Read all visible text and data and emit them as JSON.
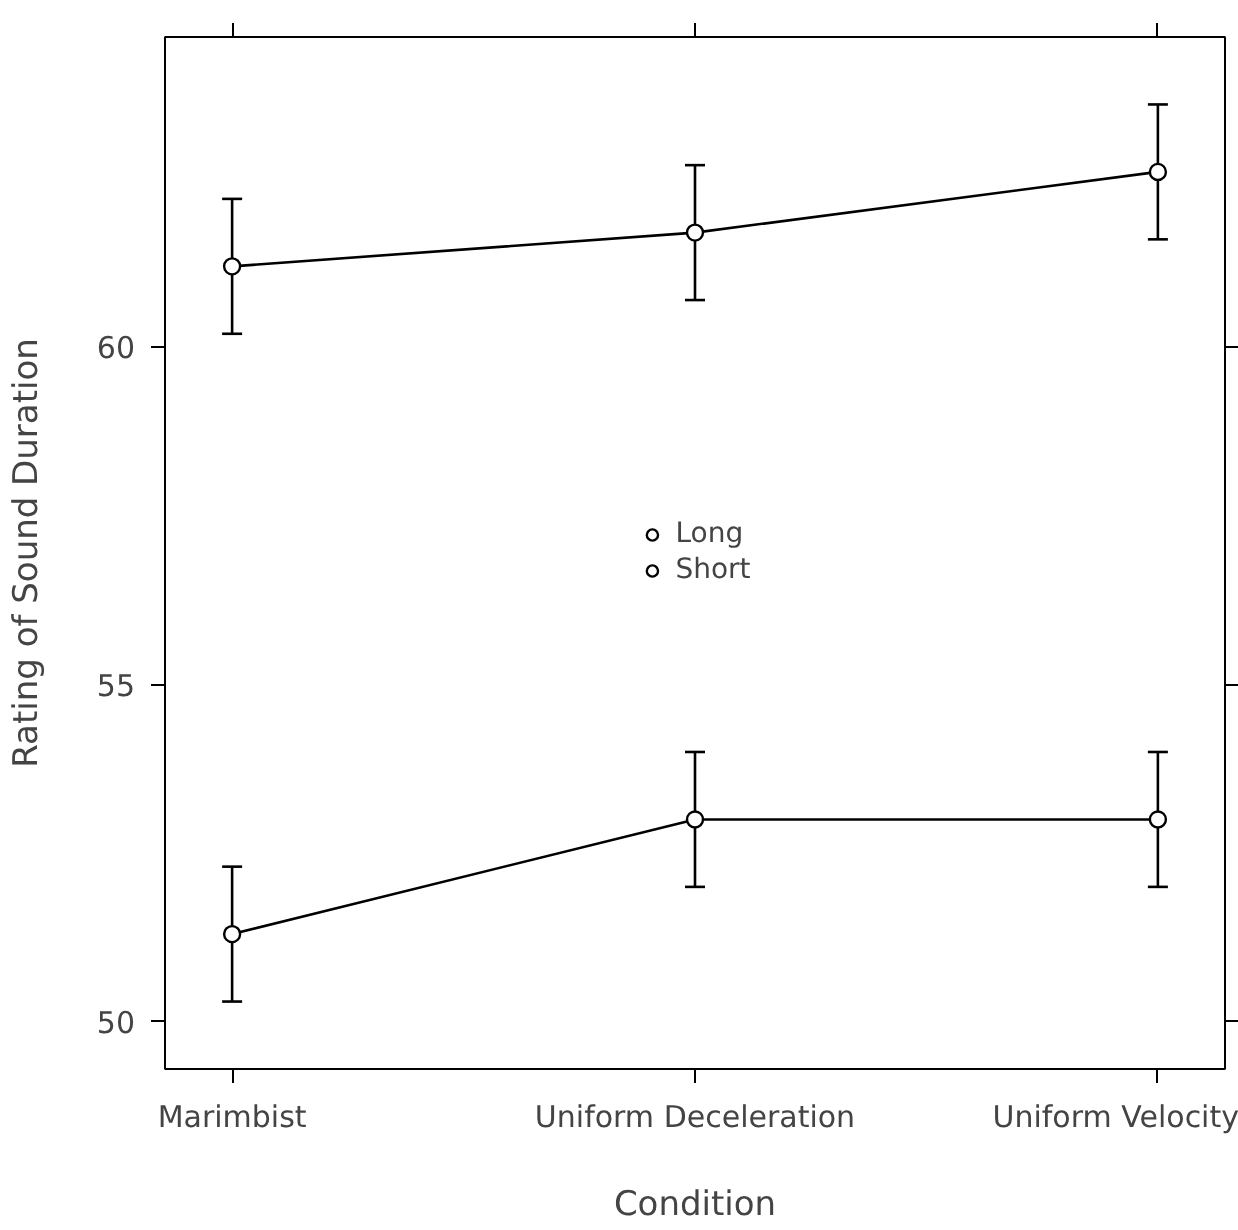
{
  "chart_data": {
    "type": "line",
    "xlabel": "Condition",
    "ylabel": "Rating of Sound Duration",
    "categories": [
      "Marimbist",
      "Uniform Deceleration",
      "Uniform Velocity"
    ],
    "series": [
      {
        "name": "Long",
        "color": "#000000",
        "values": [
          61.2,
          61.7,
          62.6
        ],
        "errors": [
          1.0,
          1.0,
          1.0
        ]
      },
      {
        "name": "Short",
        "color": "#000000",
        "values": [
          51.3,
          53.0,
          53.0
        ],
        "errors": [
          1.0,
          1.0,
          1.0
        ]
      }
    ],
    "ylim": [
      49.3,
      64.6
    ],
    "yticks": [
      50,
      55,
      60
    ],
    "marker": "circle",
    "legend": "center",
    "grid": false
  }
}
